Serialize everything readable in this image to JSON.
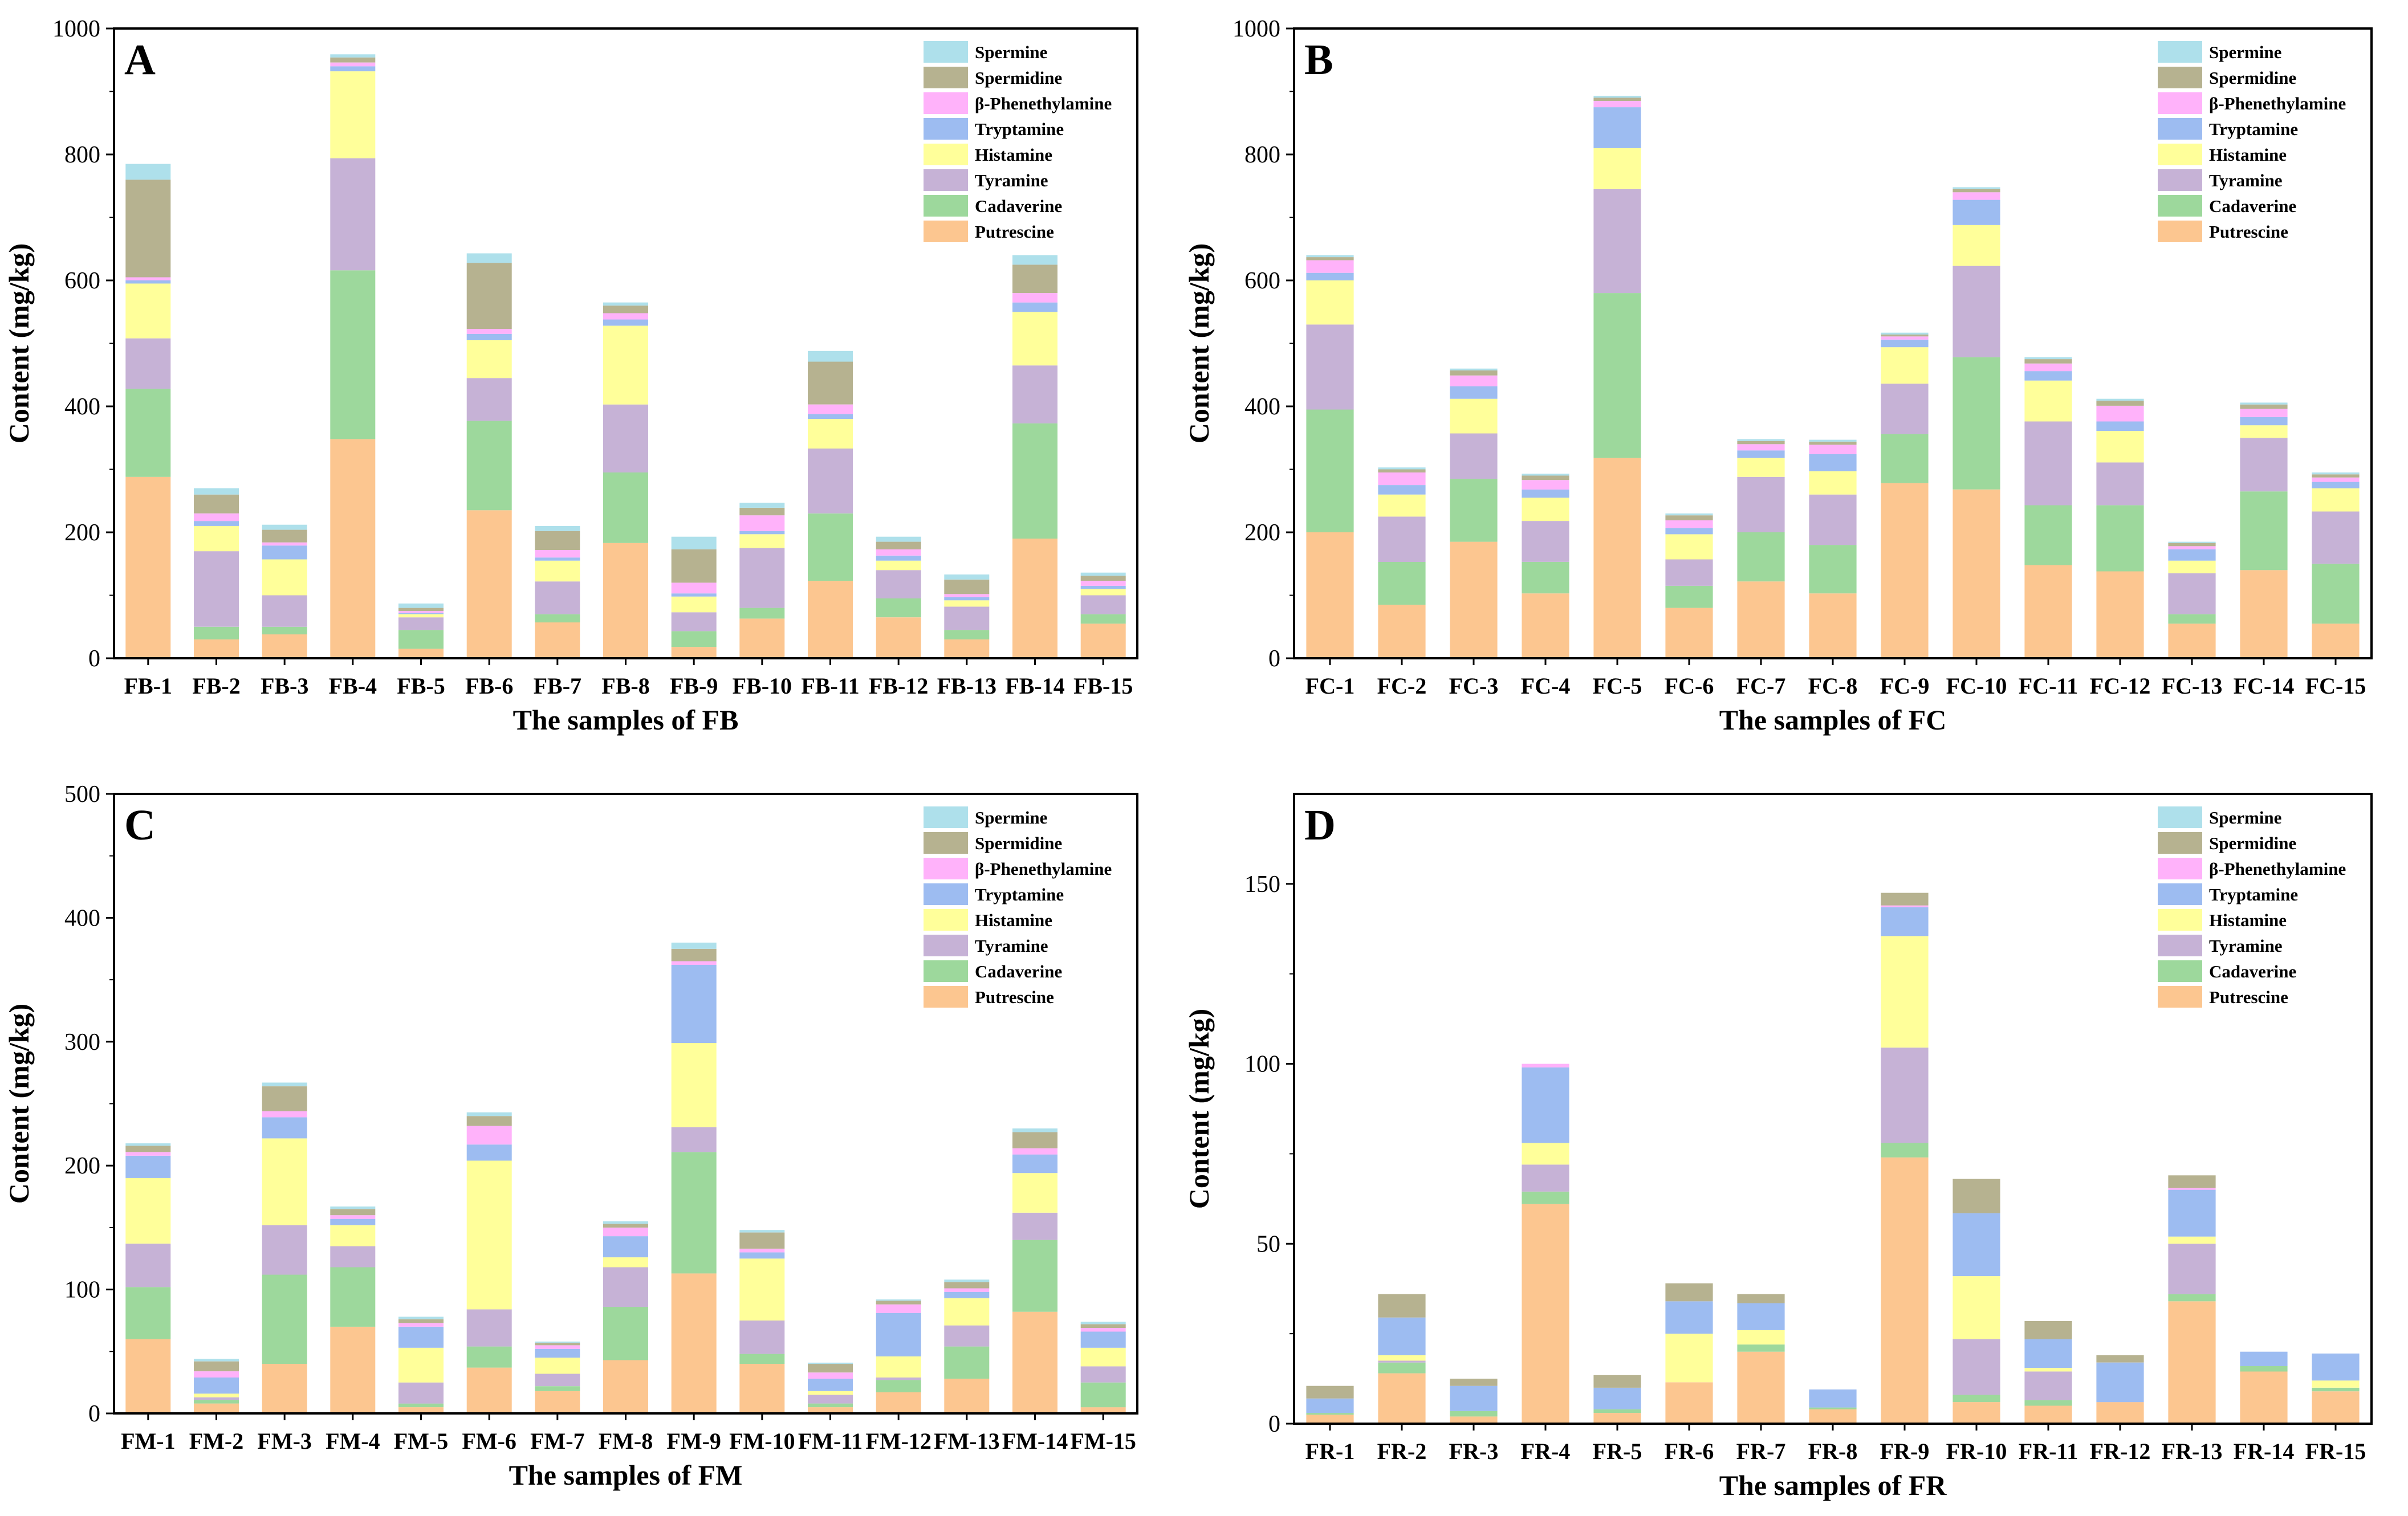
{
  "figure": {
    "series_colors": {
      "Putrescine": "#fcc690",
      "Cadaverine": "#9dd89c",
      "Tyramine": "#c6b2d6",
      "Histamine": "#ffff9a",
      "Tryptamine": "#9dbcf1",
      "β-Phenethylamine": "#ffb2fa",
      "Spermidine": "#b6b290",
      "Spermine": "#aee0eb"
    },
    "legend_order": [
      "Spermine",
      "Spermidine",
      "β-Phenethylamine",
      "Tryptamine",
      "Histamine",
      "Tyramine",
      "Cadaverine",
      "Putrescine"
    ]
  },
  "chart_data": [
    {
      "panel": "A",
      "type": "bar",
      "stacked": true,
      "xlabel": "The samples of FB",
      "ylabel": "Content (mg/kg)",
      "ylim": [
        0,
        1000
      ],
      "yticks": [
        0,
        200,
        400,
        600,
        800,
        1000
      ],
      "legend_position": "top-right",
      "categories": [
        "FB-1",
        "FB-2",
        "FB-3",
        "FB-4",
        "FB-5",
        "FB-6",
        "FB-7",
        "FB-8",
        "FB-9",
        "FB-10",
        "FB-11",
        "FB-12",
        "FB-13",
        "FB-14",
        "FB-15"
      ],
      "series": [
        {
          "name": "Putrescine",
          "values": [
            288,
            30,
            38,
            348,
            15,
            235,
            57,
            183,
            18,
            63,
            123,
            65,
            30,
            190,
            55
          ]
        },
        {
          "name": "Cadaverine",
          "values": [
            140,
            20,
            12,
            268,
            30,
            142,
            13,
            112,
            25,
            17,
            107,
            30,
            15,
            183,
            15
          ]
        },
        {
          "name": "Tyramine",
          "values": [
            80,
            120,
            50,
            178,
            20,
            68,
            52,
            108,
            30,
            95,
            103,
            45,
            37,
            92,
            30
          ]
        },
        {
          "name": "Histamine",
          "values": [
            87,
            40,
            57,
            138,
            5,
            60,
            33,
            125,
            25,
            22,
            47,
            15,
            10,
            85,
            10
          ]
        },
        {
          "name": "Tryptamine",
          "values": [
            5,
            8,
            22,
            8,
            2,
            10,
            5,
            10,
            5,
            5,
            8,
            8,
            5,
            15,
            5
          ]
        },
        {
          "name": "β-Phenethylamine",
          "values": [
            5,
            12,
            5,
            6,
            3,
            8,
            12,
            10,
            17,
            25,
            15,
            10,
            5,
            15,
            8
          ]
        },
        {
          "name": "Spermidine",
          "values": [
            155,
            30,
            20,
            8,
            5,
            105,
            30,
            12,
            53,
            12,
            68,
            12,
            23,
            45,
            8
          ]
        },
        {
          "name": "Spermine",
          "values": [
            25,
            10,
            8,
            5,
            7,
            15,
            8,
            5,
            20,
            8,
            17,
            8,
            8,
            15,
            5
          ]
        }
      ]
    },
    {
      "panel": "B",
      "type": "bar",
      "stacked": true,
      "xlabel": "The samples of FC",
      "ylabel": "Content (mg/kg)",
      "ylim": [
        0,
        1000
      ],
      "yticks": [
        0,
        200,
        400,
        600,
        800,
        1000
      ],
      "legend_position": "top-right",
      "categories": [
        "FC-1",
        "FC-2",
        "FC-3",
        "FC-4",
        "FC-5",
        "FC-6",
        "FC-7",
        "FC-8",
        "FC-9",
        "FC-10",
        "FC-11",
        "FC-12",
        "FC-13",
        "FC-14",
        "FC-15"
      ],
      "series": [
        {
          "name": "Putrescine",
          "values": [
            200,
            85,
            185,
            103,
            318,
            80,
            122,
            103,
            278,
            268,
            148,
            138,
            55,
            140,
            55
          ]
        },
        {
          "name": "Cadaverine",
          "values": [
            195,
            68,
            100,
            50,
            262,
            35,
            78,
            77,
            78,
            210,
            95,
            105,
            15,
            125,
            95
          ]
        },
        {
          "name": "Tyramine",
          "values": [
            135,
            72,
            72,
            65,
            165,
            42,
            88,
            80,
            80,
            145,
            133,
            68,
            65,
            85,
            83
          ]
        },
        {
          "name": "Histamine",
          "values": [
            70,
            35,
            55,
            37,
            65,
            40,
            30,
            37,
            58,
            65,
            65,
            50,
            20,
            20,
            37
          ]
        },
        {
          "name": "Tryptamine",
          "values": [
            12,
            15,
            20,
            13,
            65,
            10,
            12,
            27,
            12,
            40,
            15,
            15,
            18,
            13,
            10
          ]
        },
        {
          "name": "β-Phenethylamine",
          "values": [
            20,
            20,
            17,
            15,
            10,
            12,
            10,
            15,
            5,
            12,
            12,
            25,
            5,
            13,
            7
          ]
        },
        {
          "name": "Spermidine",
          "values": [
            5,
            5,
            8,
            7,
            5,
            8,
            5,
            5,
            3,
            5,
            7,
            8,
            5,
            7,
            5
          ]
        },
        {
          "name": "Spermine",
          "values": [
            3,
            3,
            3,
            3,
            3,
            3,
            3,
            3,
            3,
            3,
            3,
            3,
            2,
            3,
            3
          ]
        }
      ]
    },
    {
      "panel": "C",
      "type": "bar",
      "stacked": true,
      "xlabel": "The samples of FM",
      "ylabel": "Content (mg/kg)",
      "ylim": [
        0,
        500
      ],
      "yticks": [
        0,
        100,
        200,
        300,
        400,
        500
      ],
      "legend_position": "top-right",
      "categories": [
        "FM-1",
        "FM-2",
        "FM-3",
        "FM-4",
        "FM-5",
        "FM-6",
        "FM-7",
        "FM-8",
        "FM-9",
        "FM-10",
        "FM-11",
        "FM-12",
        "FM-13",
        "FM-14",
        "FM-15"
      ],
      "series": [
        {
          "name": "Putrescine",
          "values": [
            60,
            8,
            40,
            70,
            5,
            37,
            18,
            43,
            113,
            40,
            5,
            17,
            28,
            82,
            5
          ]
        },
        {
          "name": "Cadaverine",
          "values": [
            42,
            3,
            72,
            48,
            3,
            17,
            4,
            43,
            98,
            8,
            3,
            10,
            26,
            58,
            20
          ]
        },
        {
          "name": "Tyramine",
          "values": [
            35,
            2,
            40,
            17,
            17,
            30,
            10,
            32,
            20,
            27,
            7,
            2,
            17,
            22,
            13
          ]
        },
        {
          "name": "Histamine",
          "values": [
            53,
            3,
            70,
            17,
            28,
            120,
            13,
            8,
            68,
            50,
            3,
            17,
            22,
            32,
            15
          ]
        },
        {
          "name": "Tryptamine",
          "values": [
            18,
            13,
            17,
            5,
            17,
            13,
            7,
            17,
            63,
            5,
            10,
            35,
            5,
            15,
            13
          ]
        },
        {
          "name": "β-Phenethylamine",
          "values": [
            3,
            5,
            5,
            3,
            3,
            15,
            3,
            7,
            3,
            3,
            5,
            7,
            3,
            5,
            3
          ]
        },
        {
          "name": "Spermidine",
          "values": [
            5,
            8,
            20,
            5,
            3,
            8,
            2,
            3,
            10,
            13,
            7,
            3,
            5,
            13,
            3
          ]
        },
        {
          "name": "Spermine",
          "values": [
            2,
            2,
            3,
            2,
            2,
            3,
            1,
            2,
            5,
            2,
            1,
            1,
            2,
            3,
            2
          ]
        }
      ]
    },
    {
      "panel": "D",
      "type": "bar",
      "stacked": true,
      "xlabel": "The samples of FR",
      "ylabel": "Content (mg/kg)",
      "ylim": [
        0,
        175
      ],
      "yticks": [
        0,
        50,
        100,
        150
      ],
      "legend_position": "top-right",
      "categories": [
        "FR-1",
        "FR-2",
        "FR-3",
        "FR-4",
        "FR-5",
        "FR-6",
        "FR-7",
        "FR-8",
        "FR-9",
        "FR-10",
        "FR-11",
        "FR-12",
        "FR-13",
        "FR-14",
        "FR-15"
      ],
      "series": [
        {
          "name": "Putrescine",
          "values": [
            2.5,
            14,
            2,
            61,
            3,
            11.5,
            20,
            4,
            74,
            6,
            5,
            6,
            34,
            14.5,
            9
          ]
        },
        {
          "name": "Cadaverine",
          "values": [
            0.5,
            3,
            1.5,
            3.5,
            1,
            0,
            2,
            0.5,
            4,
            2,
            1.5,
            0,
            2,
            1.5,
            1
          ]
        },
        {
          "name": "Tyramine",
          "values": [
            0,
            0.5,
            0,
            7.5,
            0,
            0,
            0,
            0,
            26.5,
            15.5,
            8,
            0,
            14,
            0,
            0
          ]
        },
        {
          "name": "Histamine",
          "values": [
            0,
            1.5,
            0,
            6,
            0,
            13.5,
            4,
            0,
            31,
            17.5,
            1,
            0,
            2,
            0,
            2
          ]
        },
        {
          "name": "Tryptamine",
          "values": [
            4,
            10.5,
            7,
            21,
            6,
            9,
            7.5,
            5,
            8,
            17.5,
            8,
            11,
            13,
            4,
            7.5
          ]
        },
        {
          "name": "β-Phenethylamine",
          "values": [
            0,
            0,
            0,
            1,
            0,
            0,
            0,
            0,
            0.5,
            0,
            0,
            0,
            0.5,
            0,
            0
          ]
        },
        {
          "name": "Spermidine",
          "values": [
            3.5,
            6.5,
            2,
            0,
            3.5,
            5,
            2.5,
            0,
            3.5,
            9.5,
            5,
            2,
            3.5,
            0,
            0
          ]
        },
        {
          "name": "Spermine",
          "values": [
            0,
            0,
            0,
            0,
            0,
            0,
            0,
            0,
            0,
            0,
            0,
            0,
            0,
            0,
            0
          ]
        }
      ]
    }
  ]
}
